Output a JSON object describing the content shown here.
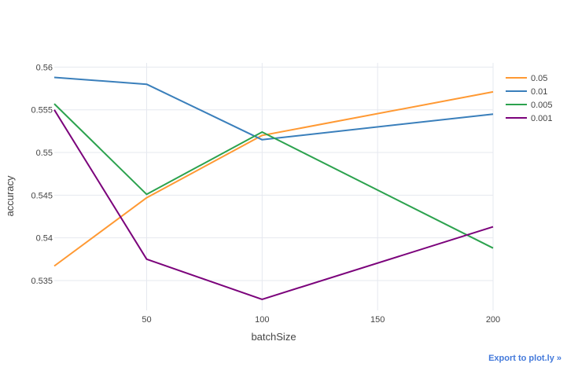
{
  "chart_data": {
    "type": "line",
    "title": "",
    "xlabel": "batchSize",
    "ylabel": "accuracy",
    "x": [
      10,
      50,
      100,
      200
    ],
    "xlim": [
      10,
      200
    ],
    "ylim": [
      0.5315,
      0.5605
    ],
    "xticks": [
      50,
      100,
      150,
      200
    ],
    "xtick_labels": [
      "50",
      "100",
      "150",
      "200"
    ],
    "yticks": [
      0.535,
      0.54,
      0.545,
      0.55,
      0.555,
      0.56
    ],
    "ytick_labels": [
      "0.535",
      "0.54",
      "0.545",
      "0.55",
      "0.555",
      "0.56"
    ],
    "grid": true,
    "legend_position": "top-right",
    "series": [
      {
        "name": "0.05",
        "color": "#ff9933",
        "values": [
          0.5367,
          0.5447,
          0.552,
          0.5571
        ]
      },
      {
        "name": "0.01",
        "color": "#3a7fbb",
        "values": [
          0.5588,
          0.558,
          0.5515,
          0.5545
        ]
      },
      {
        "name": "0.005",
        "color": "#2ca24e",
        "values": [
          0.5557,
          0.5451,
          0.5524,
          0.5388
        ]
      },
      {
        "name": "0.001",
        "color": "#7b027b",
        "values": [
          0.555,
          0.5375,
          0.5328,
          0.5413
        ]
      }
    ]
  },
  "export_link": "Export to plot.ly »"
}
